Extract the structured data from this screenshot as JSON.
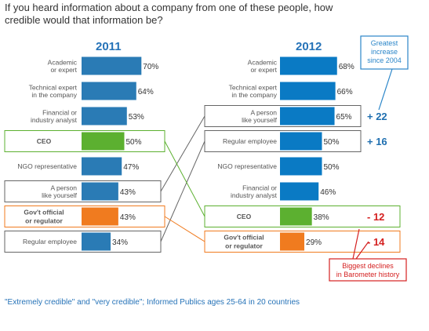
{
  "question": {
    "line1": "If you heard information about a company from one of these people, how",
    "line2": "credible would that information be?"
  },
  "chart_data": [
    {
      "type": "bar",
      "title": "2011",
      "categories": [
        [
          "Academic",
          "or expert"
        ],
        [
          "Technical expert",
          "in the company"
        ],
        [
          "Financial or",
          "industry analyst"
        ],
        [
          "CEO"
        ],
        [
          "NGO representative"
        ],
        [
          "A person",
          "like yourself"
        ],
        [
          "Gov't official",
          "or regulator"
        ],
        [
          "Regular employee"
        ]
      ],
      "values": [
        70,
        64,
        53,
        50,
        47,
        43,
        43,
        34
      ],
      "value_labels": [
        "70%",
        "64%",
        "53%",
        "50%",
        "47%",
        "43%",
        "43%",
        "34%"
      ],
      "highlight": [
        "none",
        "none",
        "none",
        "ceo",
        "none",
        "boxed",
        "gov",
        "boxed"
      ],
      "bar_color": "#2a7bb5"
    },
    {
      "type": "bar",
      "title": "2012",
      "categories": [
        [
          "Academic",
          "or expert"
        ],
        [
          "Technical expert",
          "in the company"
        ],
        [
          "A person",
          "like yourself"
        ],
        [
          "Regular employee"
        ],
        [
          "NGO representative"
        ],
        [
          "Financial or",
          "industry analyst"
        ],
        [
          "CEO"
        ],
        [
          "Gov't official",
          "or regulator"
        ]
      ],
      "values": [
        68,
        66,
        65,
        50,
        50,
        46,
        38,
        29
      ],
      "value_labels": [
        "68%",
        "66%",
        "65%",
        "50%",
        "50%",
        "46%",
        "38%",
        "29%"
      ],
      "changes": [
        "",
        "",
        "+ 22",
        "+ 16",
        "",
        "",
        "- 12",
        "- 14"
      ],
      "highlight": [
        "none",
        "none",
        "boxed",
        "boxed",
        "none",
        "none",
        "ceo",
        "gov"
      ],
      "bar_color": "#0a7ac4"
    }
  ],
  "callouts": {
    "increase": [
      "Greatest",
      "increase",
      "since 2004"
    ],
    "decline": [
      "Biggest declines",
      "in Barometer history"
    ]
  },
  "footnote": "\"Extremely credible\" and \"very credible\"; Informed Publics ages 25-64 in 20 countries",
  "colors": {
    "title_blue": "#2673b8",
    "ceo_green": "#5cb030",
    "gov_orange": "#f07b1f",
    "positive_change": "#1f6fb0",
    "negative_change": "#d42020",
    "decline_box": "#d42020",
    "increase_box": "#2b86c9",
    "box_border": "#666666",
    "footnote": "#2673b8"
  }
}
